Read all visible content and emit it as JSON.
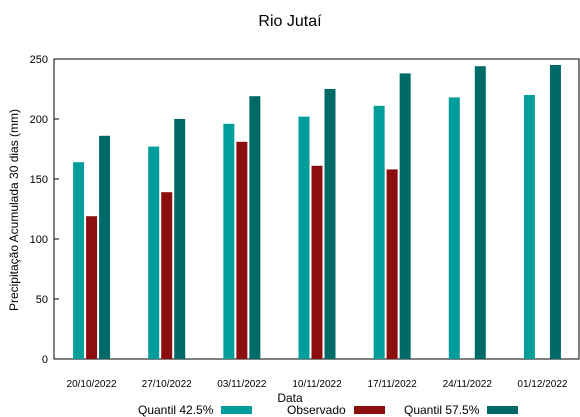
{
  "chart_data": {
    "type": "bar",
    "title": "Rio Jutaí",
    "xlabel": "Data",
    "ylabel": "Precipitação Acumulada 30 dias (mm)",
    "ylim": [
      0,
      250
    ],
    "yticks": [
      "0",
      "50",
      "100",
      "150",
      "200",
      "250"
    ],
    "grid": false,
    "legend_position": "bottom",
    "categories": [
      "20/10/2022",
      "27/10/2022",
      "03/11/2022",
      "10/11/2022",
      "17/11/2022",
      "24/11/2022",
      "01/12/2022"
    ],
    "series": [
      {
        "name": "Quantil 42.5%",
        "color": "#009d9a",
        "values": [
          164,
          177,
          196,
          202,
          211,
          218,
          220
        ]
      },
      {
        "name": "Observado",
        "color": "#8b0f0f",
        "values": [
          119,
          139,
          181,
          161,
          158,
          null,
          null
        ]
      },
      {
        "name": "Quantil 57.5%",
        "color": "#006a68",
        "values": [
          186,
          200,
          219,
          225,
          238,
          244,
          245
        ]
      }
    ]
  }
}
